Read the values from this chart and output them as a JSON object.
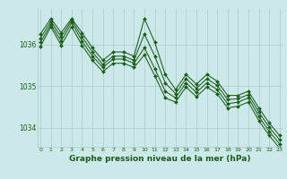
{
  "background_color": "#cde8e8",
  "grid_color": "#aacccc",
  "line_color": "#1a5c1a",
  "marker_color": "#1a5c1a",
  "xlabel": "Graphe pression niveau de la mer (hPa)",
  "xlabel_fontsize": 6.5,
  "ylim": [
    1033.55,
    1036.85
  ],
  "yticks": [
    1034,
    1035,
    1036
  ],
  "xlim": [
    -0.3,
    23.3
  ],
  "xticks": [
    0,
    1,
    2,
    3,
    4,
    5,
    6,
    7,
    8,
    9,
    10,
    11,
    12,
    13,
    14,
    15,
    16,
    17,
    18,
    19,
    20,
    21,
    22,
    23
  ],
  "series": [
    [
      1036.25,
      1036.62,
      1036.28,
      1036.62,
      1036.28,
      1035.92,
      1035.62,
      1035.82,
      1035.82,
      1035.72,
      1036.62,
      1036.05,
      1035.28,
      1034.92,
      1035.28,
      1035.05,
      1035.28,
      1035.12,
      1034.78,
      1034.78,
      1034.88,
      1034.48,
      1034.12,
      1033.82
    ],
    [
      1036.05,
      1036.48,
      1036.08,
      1036.52,
      1036.08,
      1035.72,
      1035.45,
      1035.65,
      1035.65,
      1035.55,
      1035.92,
      1035.42,
      1034.88,
      1034.72,
      1035.08,
      1034.85,
      1035.08,
      1034.92,
      1034.58,
      1034.62,
      1034.72,
      1034.28,
      1033.92,
      1033.62
    ],
    [
      1036.15,
      1036.55,
      1036.18,
      1036.58,
      1036.18,
      1035.82,
      1035.52,
      1035.72,
      1035.72,
      1035.62,
      1036.25,
      1035.72,
      1035.08,
      1034.82,
      1035.18,
      1034.95,
      1035.18,
      1035.02,
      1034.68,
      1034.7,
      1034.8,
      1034.38,
      1034.02,
      1033.72
    ],
    [
      1035.95,
      1036.42,
      1035.98,
      1036.42,
      1035.98,
      1035.62,
      1035.35,
      1035.55,
      1035.55,
      1035.45,
      1035.75,
      1035.25,
      1034.72,
      1034.62,
      1034.98,
      1034.75,
      1034.98,
      1034.82,
      1034.48,
      1034.52,
      1034.62,
      1034.18,
      1033.82,
      1033.52
    ]
  ]
}
